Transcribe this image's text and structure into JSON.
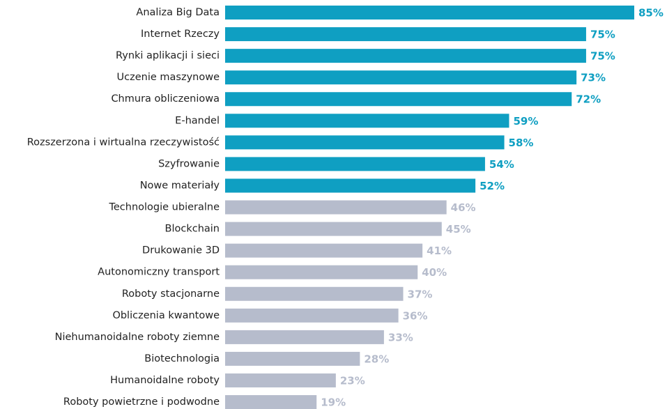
{
  "chart_data": {
    "type": "bar",
    "orientation": "horizontal",
    "categories": [
      "Analiza Big Data",
      "Internet Rzeczy",
      "Rynki aplikacji i sieci",
      "Uczenie maszynowe",
      "Chmura obliczeniowa",
      "E-handel",
      "Rozszerzona i wirtualna rzeczywistość",
      "Szyfrowanie",
      "Nowe materiały",
      "Technologie ubieralne",
      "Blockchain",
      "Drukowanie 3D",
      "Autonomiczny transport",
      "Roboty stacjonarne",
      "Obliczenia kwantowe",
      "Niehumanoidalne roboty ziemne",
      "Biotechnologia",
      "Humanoidalne roboty",
      "Roboty powietrzne i podwodne"
    ],
    "values": [
      85,
      75,
      75,
      73,
      72,
      59,
      58,
      54,
      52,
      46,
      45,
      41,
      40,
      37,
      36,
      33,
      28,
      23,
      19
    ],
    "value_labels": [
      "85%",
      "75%",
      "75%",
      "73%",
      "72%",
      "59%",
      "58%",
      "54%",
      "52%",
      "46%",
      "45%",
      "41%",
      "40%",
      "37%",
      "36%",
      "33%",
      "28%",
      "23%",
      "19%"
    ],
    "colors": [
      "#0f9fc2",
      "#0f9fc2",
      "#0f9fc2",
      "#0f9fc2",
      "#0f9fc2",
      "#0f9fc2",
      "#0f9fc2",
      "#0f9fc2",
      "#0f9fc2",
      "#b6bccc",
      "#b6bccc",
      "#b6bccc",
      "#b6bccc",
      "#b6bccc",
      "#b6bccc",
      "#b6bccc",
      "#b6bccc",
      "#b6bccc",
      "#b6bccc"
    ]
  }
}
